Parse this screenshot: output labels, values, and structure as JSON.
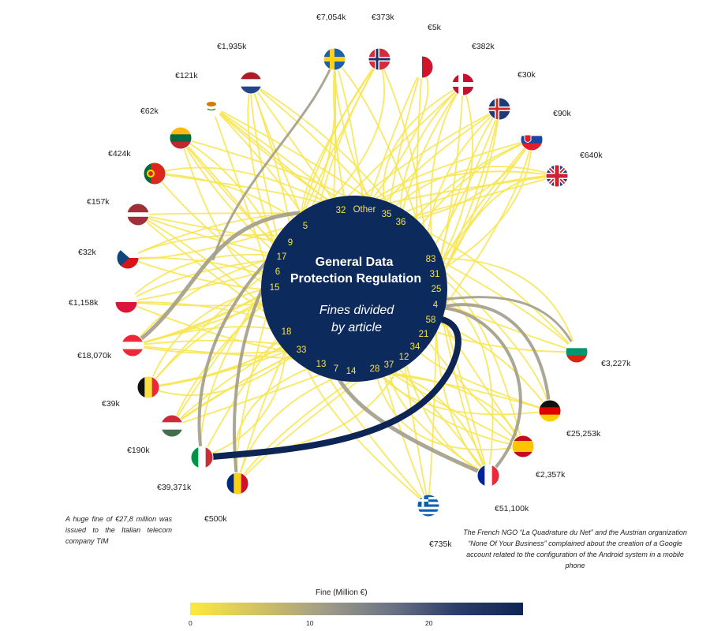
{
  "colors": {
    "hub": "#0d2a5c",
    "low": "#fde93f",
    "mid": "#a29d88",
    "high": "#0d2554",
    "article_text": "#f7e24a"
  },
  "hub": {
    "title_line1": "General Data",
    "title_line2": "Protection Regulation",
    "subtitle_line1": "Fines divided",
    "subtitle_line2": "by article"
  },
  "articles": [
    "32",
    "Other",
    "35",
    "36",
    "5",
    "9",
    "17",
    "6",
    "15",
    "83",
    "31",
    "25",
    "4",
    "58",
    "21",
    "34",
    "12",
    "37",
    "28",
    "14",
    "7",
    "13",
    "33",
    "18"
  ],
  "countries": [
    {
      "name": "Sweden",
      "flag": "flag-sweden",
      "amount": "€7,054k"
    },
    {
      "name": "Norway",
      "flag": "flag-norway",
      "amount": "€373k"
    },
    {
      "name": "Malta",
      "flag": "flag-malta",
      "amount": "€5k"
    },
    {
      "name": "Denmark",
      "flag": "flag-denmark",
      "amount": "€382k"
    },
    {
      "name": "Iceland",
      "flag": "flag-iceland",
      "amount": "€30k"
    },
    {
      "name": "Slovakia",
      "flag": "flag-slovakia",
      "amount": "€90k"
    },
    {
      "name": "United Kingdom",
      "flag": "flag-uk",
      "amount": "€640k"
    },
    {
      "name": "Netherlands",
      "flag": "flag-netherlands",
      "amount": "€1,935k"
    },
    {
      "name": "Cyprus",
      "flag": "flag-cyprus",
      "amount": "€121k"
    },
    {
      "name": "Lithuania",
      "flag": "flag-lithuania",
      "amount": "€62k"
    },
    {
      "name": "Portugal",
      "flag": "flag-portugal",
      "amount": "€424k"
    },
    {
      "name": "Latvia",
      "flag": "flag-latvia",
      "amount": "€157k"
    },
    {
      "name": "Czech Republic",
      "flag": "flag-czech",
      "amount": "€32k"
    },
    {
      "name": "Poland",
      "flag": "flag-poland",
      "amount": "€1,158k"
    },
    {
      "name": "Austria",
      "flag": "flag-austria",
      "amount": "€18,070k"
    },
    {
      "name": "Belgium",
      "flag": "flag-belgium",
      "amount": "€39k"
    },
    {
      "name": "Hungary",
      "flag": "flag-hungary",
      "amount": "€190k"
    },
    {
      "name": "Italy",
      "flag": "flag-italy",
      "amount": "€39,371k"
    },
    {
      "name": "Romania",
      "flag": "flag-romania",
      "amount": "€500k"
    },
    {
      "name": "Greece",
      "flag": "flag-greece",
      "amount": "€735k"
    },
    {
      "name": "France",
      "flag": "flag-france",
      "amount": "€51,100k"
    },
    {
      "name": "Spain",
      "flag": "flag-spain",
      "amount": "€2,357k"
    },
    {
      "name": "Germany",
      "flag": "flag-germany",
      "amount": "€25,253k"
    },
    {
      "name": "Bulgaria",
      "flag": "flag-bulgaria",
      "amount": "€3,227k"
    }
  ],
  "notes": {
    "left": "A huge fine of €27,8 million was issued to the Italian telecom company TIM",
    "right": "The French NGO “La Quadrature du Net” and the Austrian organization “None Of Your Business” complained about the creation of a Google account related to the configuration of the Android system in a mobile phone"
  },
  "legend": {
    "title": "Fine (Million €)",
    "ticks": [
      "0",
      "10",
      "20"
    ]
  }
}
